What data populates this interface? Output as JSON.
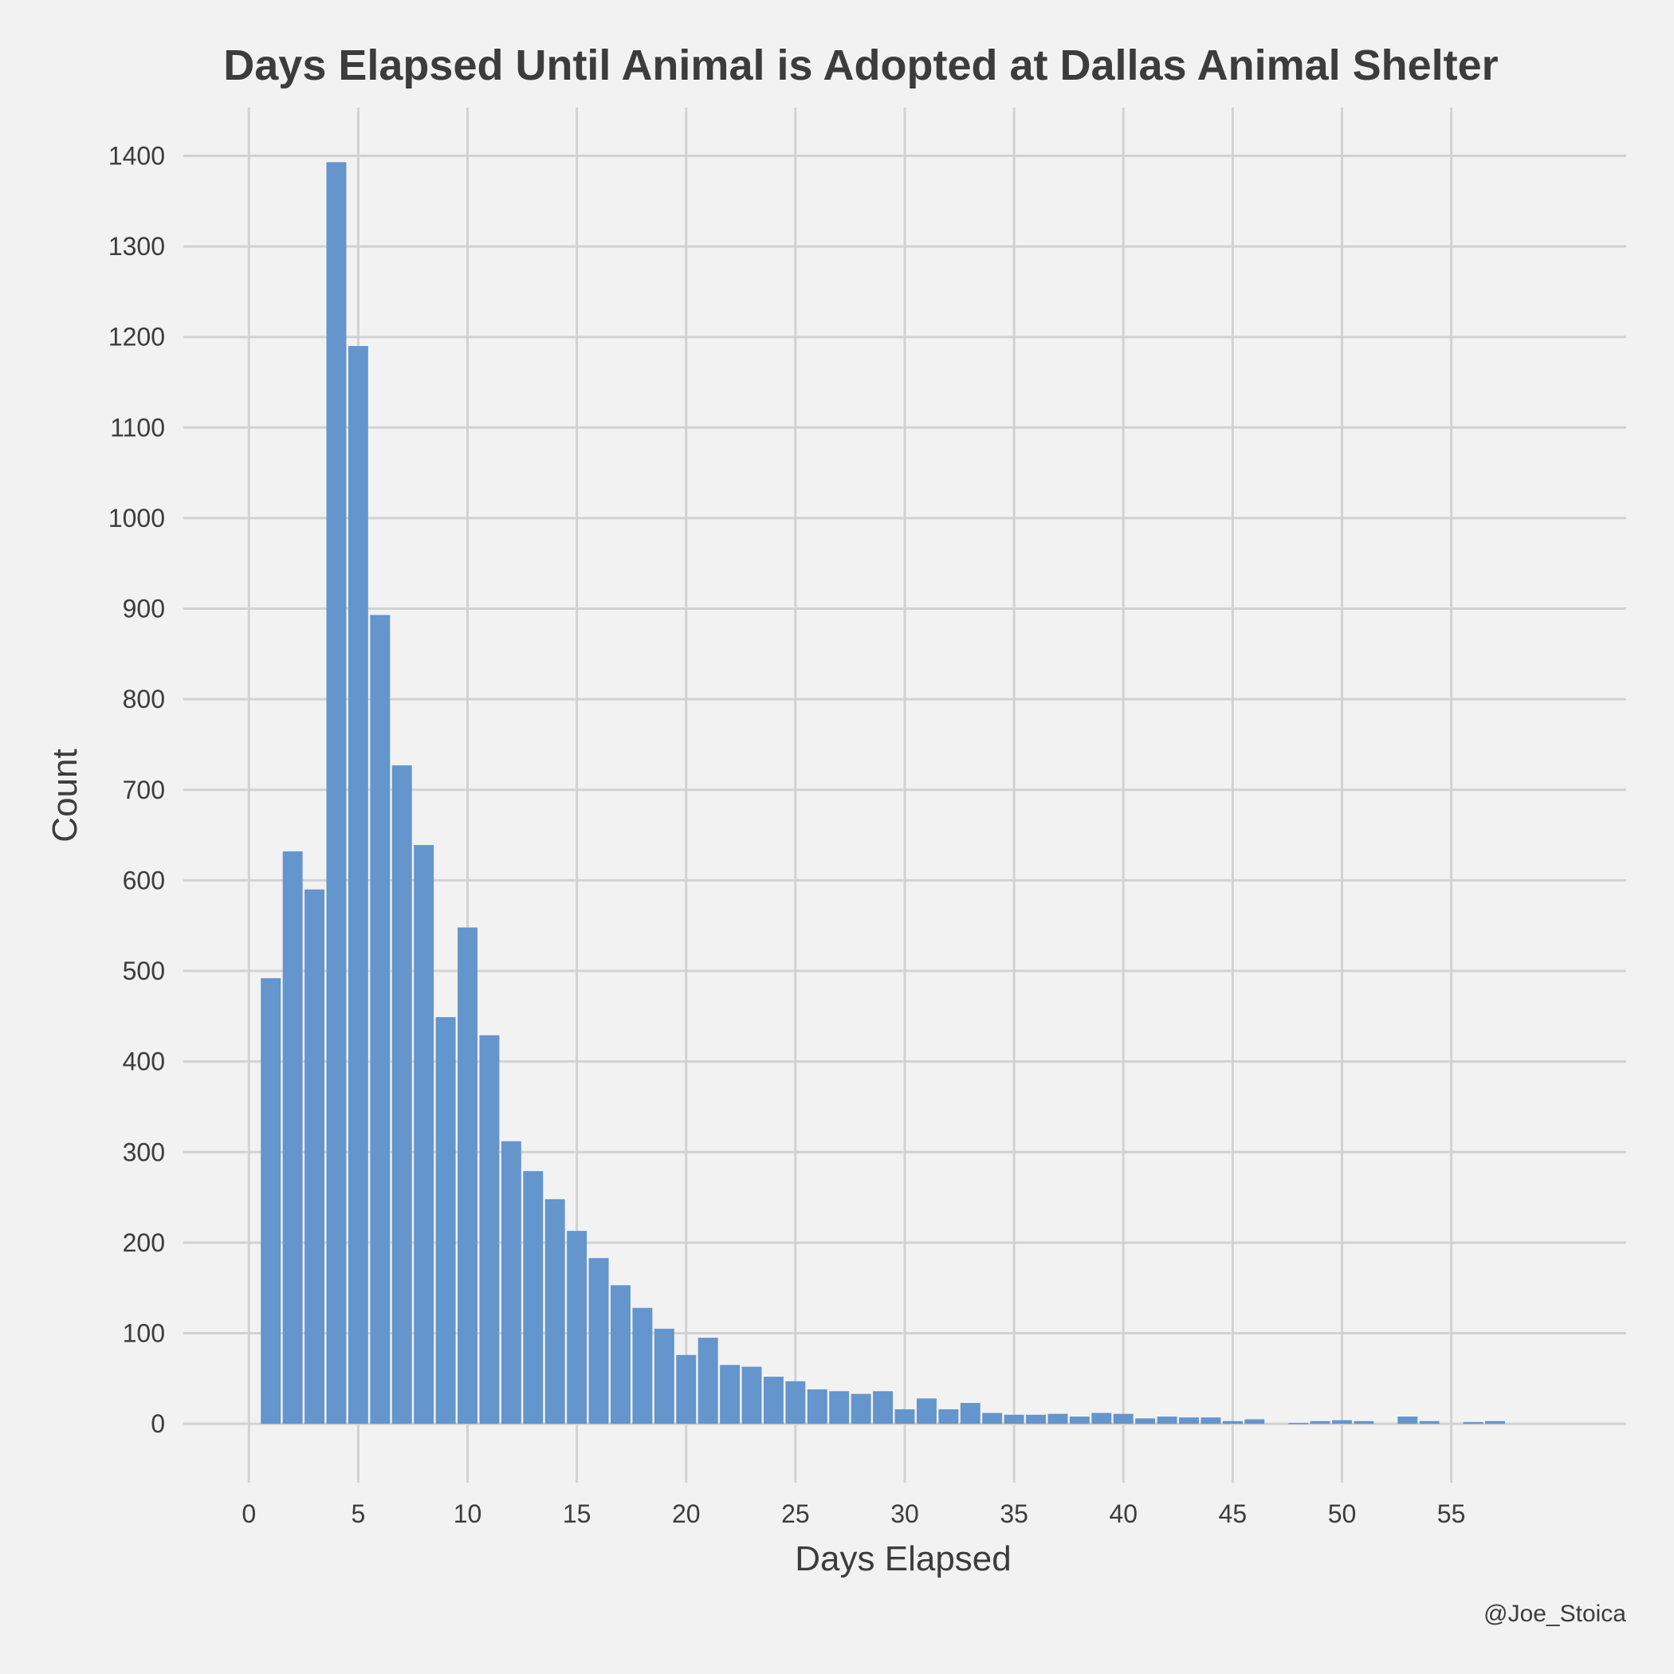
{
  "chart_data": {
    "type": "bar",
    "title": "Days Elapsed Until Animal is Adopted at Dallas Animal Shelter",
    "xlabel": "Days Elapsed",
    "ylabel": "Count",
    "caption": "@Joe_Stoica",
    "x": [
      1,
      2,
      3,
      4,
      5,
      6,
      7,
      8,
      9,
      10,
      11,
      12,
      13,
      14,
      15,
      16,
      17,
      18,
      19,
      20,
      21,
      22,
      23,
      24,
      25,
      26,
      27,
      28,
      29,
      30,
      31,
      32,
      33,
      34,
      35,
      36,
      37,
      38,
      39,
      40,
      41,
      42,
      43,
      44,
      45,
      46,
      47,
      48,
      49,
      50,
      51,
      52,
      53,
      54,
      55,
      56,
      57
    ],
    "values": [
      492,
      632,
      590,
      1393,
      1190,
      893,
      727,
      639,
      449,
      548,
      429,
      312,
      279,
      248,
      213,
      183,
      153,
      128,
      105,
      76,
      95,
      65,
      63,
      52,
      47,
      38,
      36,
      33,
      36,
      16,
      28,
      16,
      23,
      12,
      10,
      10,
      11,
      8,
      12,
      11,
      6,
      8,
      7,
      7,
      3,
      5,
      0,
      1,
      3,
      4,
      3,
      0,
      8,
      3,
      0,
      2,
      3
    ],
    "xlim": [
      -3,
      63
    ],
    "ylim": [
      -65,
      1440
    ],
    "xticks": [
      0,
      5,
      10,
      15,
      20,
      25,
      30,
      35,
      40,
      45,
      50,
      55
    ],
    "yticks": [
      0,
      100,
      200,
      300,
      400,
      500,
      600,
      700,
      800,
      900,
      1000,
      1100,
      1200,
      1300,
      1400
    ],
    "bar_color": "#6495cc",
    "background": "#f2f2f2",
    "grid_color": "#d2d2d2",
    "grid": true
  }
}
